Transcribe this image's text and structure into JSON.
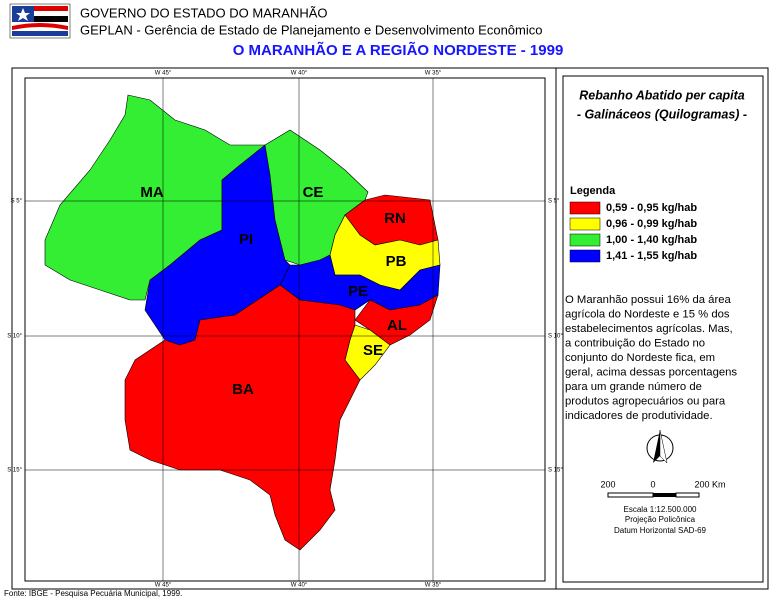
{
  "header": {
    "line1": "GOVERNO DO ESTADO DO MARANHÃO",
    "line2": "GEPLAN - Gerência de Estado de Planejamento e Desenvolvimento Econômico",
    "title": "O MARANHÃO E A REGIÃO NORDESTE - 1999"
  },
  "map": {
    "longitudes": [
      "W 45°",
      "W 40°",
      "W 35°"
    ],
    "latitudes": [
      "S 5°",
      "S 10°",
      "S 15°"
    ],
    "states": [
      {
        "label": "MA",
        "color": "#33ee33"
      },
      {
        "label": "PI",
        "color": "#0000ff"
      },
      {
        "label": "CE",
        "color": "#33ee33"
      },
      {
        "label": "RN",
        "color": "#ff0000"
      },
      {
        "label": "PB",
        "color": "#ffff00"
      },
      {
        "label": "PE",
        "color": "#0000ff"
      },
      {
        "label": "AL",
        "color": "#ff0000"
      },
      {
        "label": "SE",
        "color": "#ffff00"
      },
      {
        "label": "BA",
        "color": "#ff0000"
      }
    ]
  },
  "panel": {
    "title": [
      "Rebanho Abatido per capita",
      "- Galináceos (Quilogramas) -"
    ],
    "legend_title": "Legenda",
    "legend": [
      {
        "label": "0,59 - 0,95 kg/hab",
        "color": "#ff0000"
      },
      {
        "label": "0,96 - 0,99 kg/hab",
        "color": "#ffff00"
      },
      {
        "label": "1,00 - 1,40 kg/hab",
        "color": "#33ee33"
      },
      {
        "label": "1,41 - 1,55 kg/hab",
        "color": "#0000ff"
      }
    ],
    "text": [
      "O Maranhão possui 16% da área",
      "agrícola do Nordeste e 15 % dos",
      "estabelecimentos agrícolas. Mas,",
      "a contribuição do Estado no",
      "conjunto do Nordeste fica, em",
      "geral, acima dessas porcentagens",
      "para um grande número de",
      "produtos agropecuários ou para",
      "indicadores de produtividade."
    ],
    "scale_labels": [
      "200",
      "0",
      "200 Km"
    ],
    "scale": "Escala 1:12.500.000",
    "projection": "Projeção Policônica",
    "datum": "Datum Horizontal SAD-69"
  },
  "footer": "Fonte: IBGE - Pesquisa Pecuária Municipal, 1999."
}
